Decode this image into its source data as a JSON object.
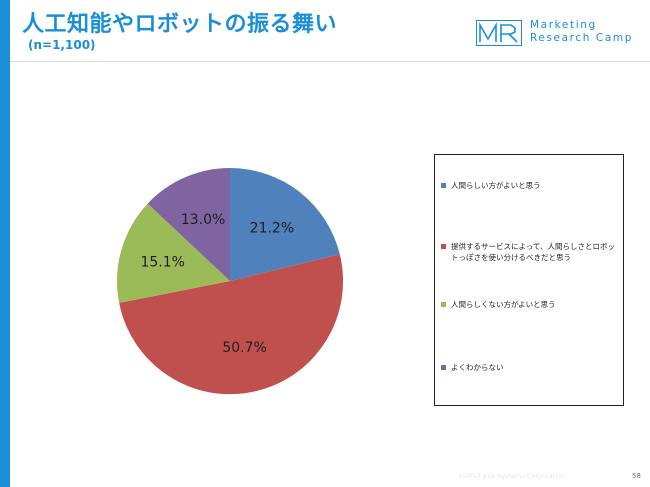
{
  "header": {
    "title": "人工知能やロボットの振る舞い",
    "subtitle": "(n=1,100)"
  },
  "logo": {
    "line1": "Marketing",
    "line2": "Research Camp",
    "mark": "MR"
  },
  "chart_data": {
    "type": "pie",
    "categories": [
      "人間らしい方がよいと思う",
      "提供するサービスによって、人間らしさとロボットっぽさを使い分けるべきだと思う",
      "人間らしくない方がよいと思う",
      "よくわからない"
    ],
    "values": [
      21.2,
      50.7,
      15.1,
      13.0
    ],
    "labels": [
      "21.2%",
      "50.7%",
      "15.1%",
      "13.0%"
    ],
    "colors": [
      "#4f81bd",
      "#c0504d",
      "#9bbb59",
      "#8064a2"
    ],
    "legend_position": "right"
  },
  "legend": {
    "items": [
      {
        "label": "人間らしい方がよいと思う",
        "color": "#4f81bd"
      },
      {
        "label": "提供するサービスによって、人間らしさとロボットっぽさを使い分けるべきだと思う",
        "color": "#c0504d"
      },
      {
        "label": "人間らしくない方がよいと思う",
        "color": "#9bbb59"
      },
      {
        "label": "よくわからない",
        "color": "#8064a2"
      }
    ]
  },
  "footer": {
    "copyright": "©2017 Just Systems Corporation",
    "page_number": "58"
  },
  "theme": {
    "accent": "#1a8fd6"
  }
}
